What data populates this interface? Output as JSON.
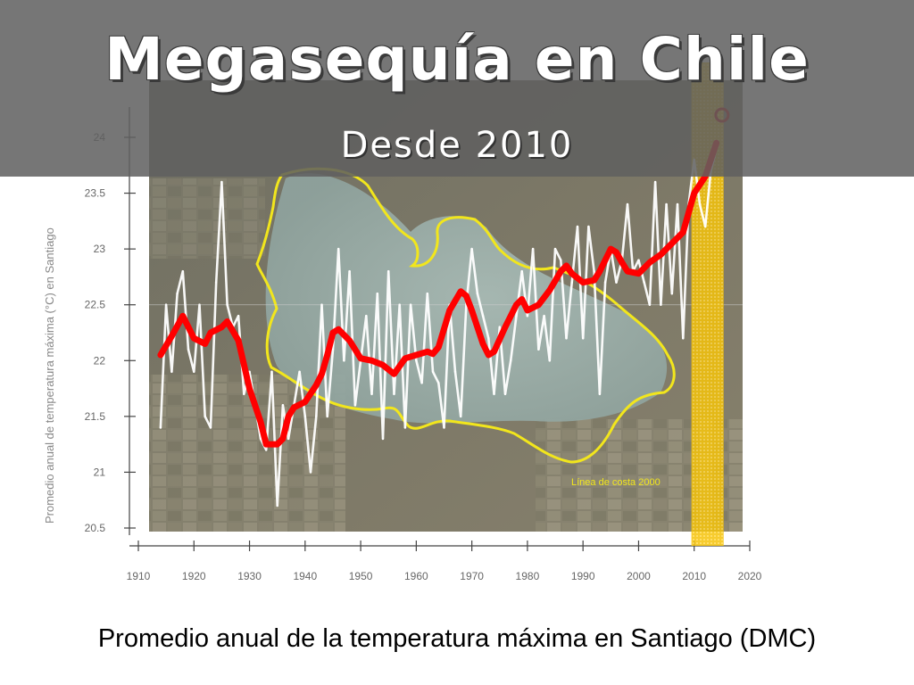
{
  "slide": {
    "title": "Megasequía en Chile",
    "subtitle": "Desde 2010",
    "caption": "Promedio anual de la temperatura máxima en Santiago (DMC)"
  },
  "background": {
    "annotation": "Línea de costa 2000",
    "lake_outline_color": "#f2e61c"
  },
  "chart_data": {
    "type": "line",
    "title": "",
    "xlabel": "",
    "ylabel": "Promedio anual de temperatura máxima (°C) en Santiago",
    "xlim": [
      1910,
      2020
    ],
    "ylim": [
      20.5,
      24
    ],
    "x_ticks": [
      "1910",
      "1920",
      "1930",
      "1940",
      "1950",
      "1960",
      "1970",
      "1980",
      "1990",
      "2000",
      "2010",
      "2020"
    ],
    "y_ticks": [
      "20.5",
      "21",
      "21.5",
      "22",
      "22.5",
      "23",
      "23.5",
      "24"
    ],
    "highlight_range": [
      2009.5,
      2015.3
    ],
    "highlight_color": "#ffcc00",
    "series": [
      {
        "role": "annual",
        "color": "#ffffff",
        "points": [
          [
            1914,
            21.4
          ],
          [
            1915,
            22.5
          ],
          [
            1916,
            21.9
          ],
          [
            1917,
            22.6
          ],
          [
            1918,
            22.8
          ],
          [
            1919,
            22.1
          ],
          [
            1920,
            21.9
          ],
          [
            1921,
            22.5
          ],
          [
            1922,
            21.5
          ],
          [
            1923,
            21.4
          ],
          [
            1924,
            22.7
          ],
          [
            1925,
            23.6
          ],
          [
            1926,
            22.5
          ],
          [
            1927,
            22.3
          ],
          [
            1928,
            22.4
          ],
          [
            1929,
            21.7
          ],
          [
            1930,
            21.9
          ],
          [
            1931,
            21.6
          ],
          [
            1932,
            21.3
          ],
          [
            1933,
            21.2
          ],
          [
            1934,
            21.9
          ],
          [
            1935,
            20.7
          ],
          [
            1936,
            21.6
          ],
          [
            1937,
            21.3
          ],
          [
            1938,
            21.6
          ],
          [
            1939,
            21.9
          ],
          [
            1940,
            21.5
          ],
          [
            1941,
            21.0
          ],
          [
            1942,
            21.5
          ],
          [
            1943,
            22.5
          ],
          [
            1944,
            21.5
          ],
          [
            1945,
            22.1
          ],
          [
            1946,
            23.0
          ],
          [
            1947,
            22.0
          ],
          [
            1948,
            22.8
          ],
          [
            1949,
            21.6
          ],
          [
            1950,
            22.0
          ],
          [
            1951,
            22.4
          ],
          [
            1952,
            21.7
          ],
          [
            1953,
            22.6
          ],
          [
            1954,
            21.3
          ],
          [
            1955,
            22.8
          ],
          [
            1956,
            21.7
          ],
          [
            1957,
            22.5
          ],
          [
            1958,
            21.4
          ],
          [
            1959,
            22.5
          ],
          [
            1960,
            22.0
          ],
          [
            1961,
            21.8
          ],
          [
            1962,
            22.6
          ],
          [
            1963,
            21.9
          ],
          [
            1964,
            21.8
          ],
          [
            1965,
            21.4
          ],
          [
            1966,
            22.5
          ],
          [
            1967,
            21.9
          ],
          [
            1968,
            21.5
          ],
          [
            1969,
            22.5
          ],
          [
            1970,
            23.0
          ],
          [
            1971,
            22.6
          ],
          [
            1972,
            22.4
          ],
          [
            1973,
            22.2
          ],
          [
            1974,
            21.7
          ],
          [
            1975,
            22.3
          ],
          [
            1976,
            21.7
          ],
          [
            1977,
            22.0
          ],
          [
            1978,
            22.4
          ],
          [
            1979,
            22.8
          ],
          [
            1980,
            22.4
          ],
          [
            1981,
            23.0
          ],
          [
            1982,
            22.1
          ],
          [
            1983,
            22.4
          ],
          [
            1984,
            22.0
          ],
          [
            1985,
            23.0
          ],
          [
            1986,
            22.9
          ],
          [
            1987,
            22.2
          ],
          [
            1988,
            22.7
          ],
          [
            1989,
            23.2
          ],
          [
            1990,
            22.2
          ],
          [
            1991,
            23.2
          ],
          [
            1992,
            22.8
          ],
          [
            1993,
            21.7
          ],
          [
            1994,
            22.7
          ],
          [
            1995,
            23.0
          ],
          [
            1996,
            22.7
          ],
          [
            1997,
            22.9
          ],
          [
            1998,
            23.4
          ],
          [
            1999,
            22.8
          ],
          [
            2000,
            22.9
          ],
          [
            2001,
            22.7
          ],
          [
            2002,
            22.5
          ],
          [
            2003,
            23.6
          ],
          [
            2004,
            22.5
          ],
          [
            2005,
            23.4
          ],
          [
            2006,
            22.6
          ],
          [
            2007,
            23.4
          ],
          [
            2008,
            22.2
          ],
          [
            2009,
            23.4
          ],
          [
            2010,
            23.8
          ],
          [
            2011,
            23.4
          ],
          [
            2012,
            23.2
          ],
          [
            2013,
            23.7
          ],
          [
            2014,
            23.9
          ]
        ]
      },
      {
        "role": "moving-average",
        "color": "#ff0000",
        "points": [
          [
            1914,
            22.05
          ],
          [
            1916,
            22.22
          ],
          [
            1918,
            22.4
          ],
          [
            1920,
            22.2
          ],
          [
            1922,
            22.15
          ],
          [
            1923,
            22.25
          ],
          [
            1925,
            22.3
          ],
          [
            1926,
            22.35
          ],
          [
            1928,
            22.18
          ],
          [
            1930,
            21.75
          ],
          [
            1932,
            21.45
          ],
          [
            1933,
            21.25
          ],
          [
            1935,
            21.25
          ],
          [
            1936,
            21.3
          ],
          [
            1937,
            21.5
          ],
          [
            1938,
            21.58
          ],
          [
            1940,
            21.63
          ],
          [
            1942,
            21.78
          ],
          [
            1943,
            21.88
          ],
          [
            1944,
            22.05
          ],
          [
            1945,
            22.25
          ],
          [
            1946,
            22.28
          ],
          [
            1948,
            22.18
          ],
          [
            1950,
            22.02
          ],
          [
            1952,
            22.0
          ],
          [
            1954,
            21.96
          ],
          [
            1956,
            21.88
          ],
          [
            1957,
            21.95
          ],
          [
            1958,
            22.02
          ],
          [
            1960,
            22.05
          ],
          [
            1962,
            22.08
          ],
          [
            1963,
            22.06
          ],
          [
            1964,
            22.12
          ],
          [
            1966,
            22.45
          ],
          [
            1968,
            22.62
          ],
          [
            1969,
            22.58
          ],
          [
            1970,
            22.45
          ],
          [
            1972,
            22.15
          ],
          [
            1973,
            22.05
          ],
          [
            1974,
            22.08
          ],
          [
            1976,
            22.3
          ],
          [
            1978,
            22.5
          ],
          [
            1979,
            22.55
          ],
          [
            1980,
            22.45
          ],
          [
            1982,
            22.5
          ],
          [
            1984,
            22.63
          ],
          [
            1986,
            22.8
          ],
          [
            1987,
            22.85
          ],
          [
            1988,
            22.78
          ],
          [
            1990,
            22.7
          ],
          [
            1992,
            22.72
          ],
          [
            1993,
            22.8
          ],
          [
            1995,
            23.0
          ],
          [
            1996,
            22.97
          ],
          [
            1997,
            22.88
          ],
          [
            1998,
            22.8
          ],
          [
            2000,
            22.78
          ],
          [
            2002,
            22.88
          ],
          [
            2004,
            22.95
          ],
          [
            2006,
            23.05
          ],
          [
            2008,
            23.15
          ],
          [
            2010,
            23.5
          ],
          [
            2012,
            23.65
          ],
          [
            2014,
            23.95
          ]
        ]
      },
      {
        "role": "latest-year-marker",
        "color": "#c80000",
        "points": [
          [
            2015,
            24.2
          ]
        ]
      }
    ]
  }
}
